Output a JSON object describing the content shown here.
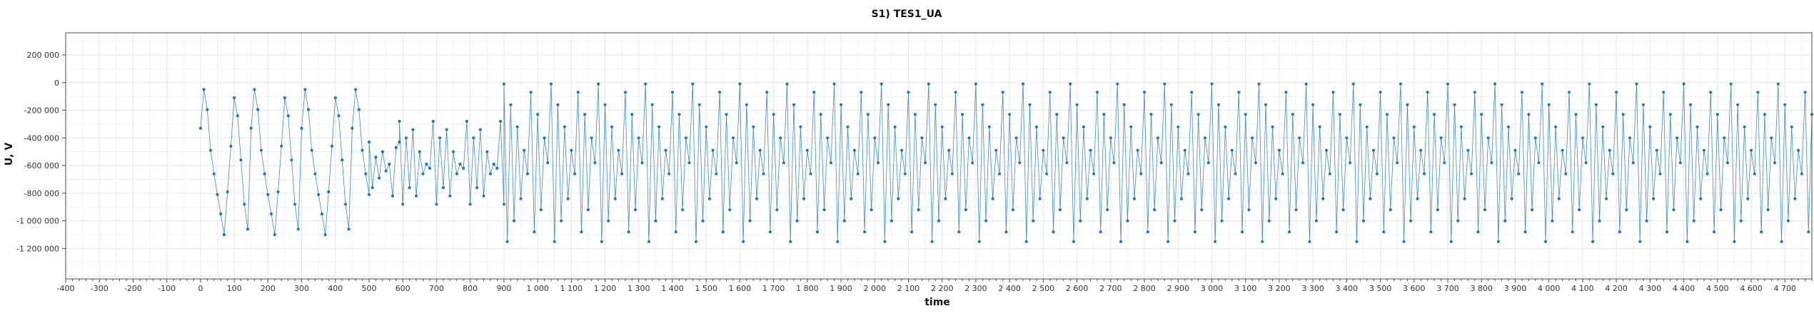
{
  "chart_data": {
    "type": "line",
    "title": "S1) TES1_UA",
    "xlabel": "time",
    "ylabel": "U, V",
    "xlim": [
      -400,
      4780
    ],
    "ylim": [
      -1420000,
      360000
    ],
    "x_ticks": [
      -400,
      -300,
      -200,
      -100,
      0,
      100,
      200,
      300,
      400,
      500,
      600,
      700,
      800,
      900,
      1000,
      1100,
      1200,
      1300,
      1400,
      1500,
      1600,
      1700,
      1800,
      1900,
      2000,
      2100,
      2200,
      2300,
      2400,
      2500,
      2600,
      2700,
      2800,
      2900,
      3000,
      3100,
      3200,
      3300,
      3400,
      3500,
      3600,
      3700,
      3800,
      3900,
      4000,
      4100,
      4200,
      4300,
      4400,
      4500,
      4600,
      4700
    ],
    "x_tick_labels": [
      "-400",
      "-300",
      "-200",
      "-100",
      "0",
      "100",
      "200",
      "300",
      "400",
      "500",
      "600",
      "700",
      "800",
      "900",
      "1 000",
      "1 100",
      "1 200",
      "1 300",
      "1 400",
      "1 500",
      "1 600",
      "1 700",
      "1 800",
      "1 900",
      "2 000",
      "2 100",
      "2 200",
      "2 300",
      "2 400",
      "2 500",
      "2 600",
      "2 700",
      "2 800",
      "2 900",
      "3 000",
      "3 100",
      "3 200",
      "3 300",
      "3 400",
      "3 500",
      "3 600",
      "3 700",
      "3 800",
      "3 900",
      "4 000",
      "4 100",
      "4 200",
      "4 300",
      "4 400",
      "4 500",
      "4 600",
      "4 700"
    ],
    "y_ticks": [
      200000,
      0,
      -200000,
      -400000,
      -600000,
      -800000,
      -1000000,
      -1200000
    ],
    "y_tick_labels": [
      "200 000",
      "0",
      "-200 000",
      "-400 000",
      "-600 000",
      "-800 000",
      "-1 000 000",
      "-1 200 000"
    ],
    "grid": true,
    "legend": "none",
    "series": [
      {
        "color": "#1f77b4",
        "segments": [
          {
            "kind": "periodic",
            "x_start": 0,
            "x_end": 500,
            "step": 10,
            "levels": [
              -330000,
              -50000,
              -195000,
              -490000,
              -660000,
              -810000,
              -950000,
              -1100000,
              -790000,
              -460000,
              -110000,
              -240000,
              -560000,
              -880000,
              -1060000
            ]
          },
          {
            "kind": "periodic",
            "x_start": 500,
            "x_end": 590,
            "step": 10,
            "levels": [
              -430000,
              -760000,
              -540000,
              -690000,
              -500000,
              -640000,
              -590000,
              -820000,
              -470000
            ]
          },
          {
            "kind": "periodic",
            "x_start": 590,
            "x_end": 900,
            "step": 10,
            "levels": [
              -280000,
              -880000,
              -400000,
              -760000,
              -340000,
              -820000,
              -500000,
              -660000,
              -590000,
              -620000
            ]
          },
          {
            "kind": "periodic",
            "x_start": 900,
            "x_end": 4780,
            "step": 10,
            "levels": [
              -10000,
              -1150000,
              -160000,
              -1000000,
              -320000,
              -840000,
              -490000,
              -660000,
              -70000,
              -1080000,
              -230000,
              -920000,
              -400000,
              -580000
            ]
          }
        ]
      }
    ]
  }
}
